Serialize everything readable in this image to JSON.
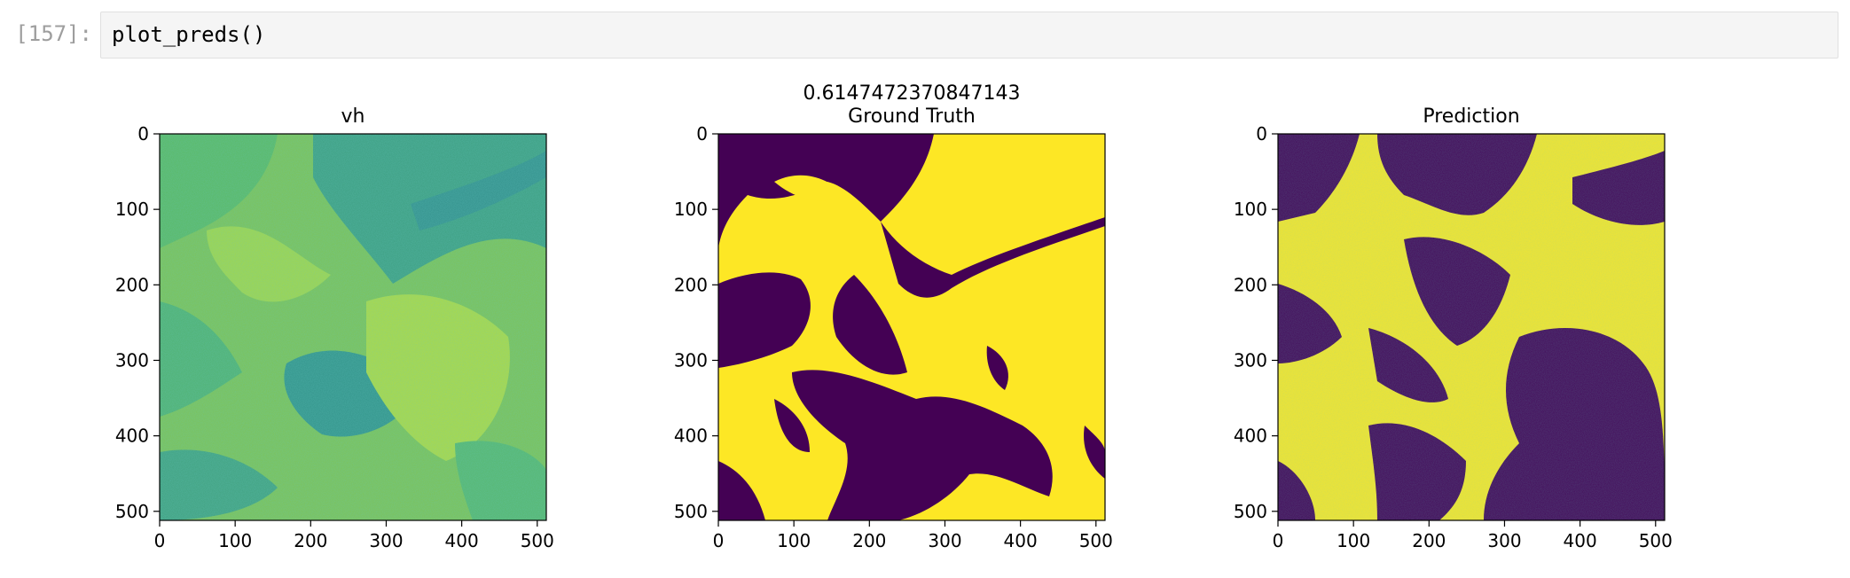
{
  "cell": {
    "prompt": "[157]:",
    "code": "plot_preds()"
  },
  "figure": {
    "suptitle": "0.6147472370847143",
    "panels": [
      {
        "title": "vh",
        "image": "continuous SAR backscatter (viridis)"
      },
      {
        "title": "Ground Truth",
        "image": "binary mask (viridis)"
      },
      {
        "title": "Prediction",
        "image": "binary mask (viridis)"
      }
    ],
    "x_ticks": [
      "0",
      "100",
      "200",
      "300",
      "400",
      "500"
    ],
    "y_ticks": [
      "0",
      "100",
      "200",
      "300",
      "400",
      "500"
    ],
    "axis_range": [
      0,
      512
    ],
    "colors": {
      "low": "#440154",
      "mid": "#21918c",
      "high": "#fde725"
    }
  }
}
